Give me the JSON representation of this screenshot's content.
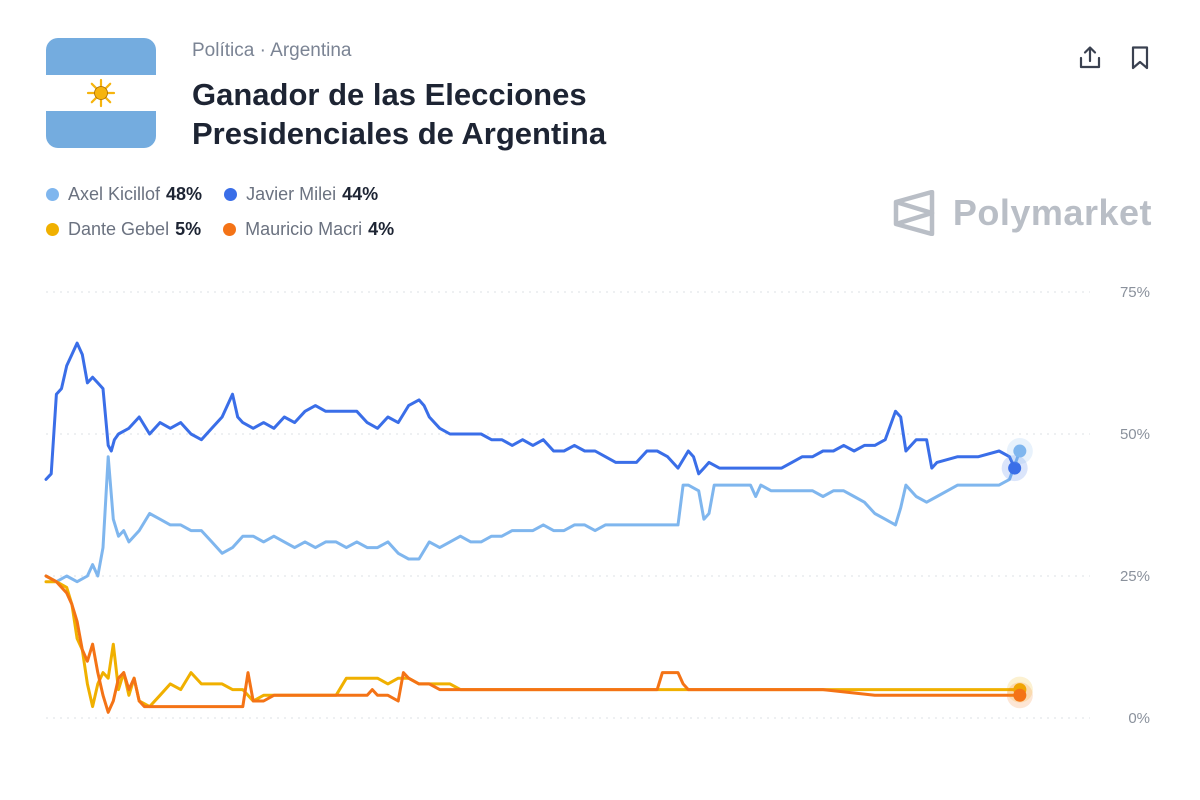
{
  "header": {
    "breadcrumb": "Política · Argentina",
    "title": "Ganador de las Elecciones Presidenciales de Argentina",
    "brand": "Polymarket"
  },
  "icons": {
    "share": "share-icon",
    "bookmark": "bookmark-icon",
    "flag": "argentina-flag-icon",
    "brand_logo": "polymarket-logo-icon"
  },
  "colors": {
    "light_blue": "#7fb6ee",
    "blue": "#3a6ee8",
    "yellow": "#f0b000",
    "orange": "#f47316",
    "flag_blue": "#74acdf",
    "sun": "#f6b40e"
  },
  "legend": [
    {
      "name": "Axel Kicillof",
      "value": "48%",
      "color": "#7fb6ee"
    },
    {
      "name": "Javier Milei",
      "value": "44%",
      "color": "#3a6ee8"
    },
    {
      "name": "Dante Gebel",
      "value": "5%",
      "color": "#f0b000"
    },
    {
      "name": "Mauricio Macri",
      "value": "4%",
      "color": "#f47316"
    }
  ],
  "chart_data": {
    "type": "line",
    "y_ticks": [
      "75%",
      "50%",
      "25%",
      "0%"
    ],
    "ylim": [
      0,
      75
    ],
    "xlim": [
      0,
      100
    ],
    "grid": true,
    "series": [
      {
        "name": "Javier Milei",
        "color": "#3a6ee8",
        "points": [
          [
            0,
            42
          ],
          [
            0.5,
            43
          ],
          [
            1,
            57
          ],
          [
            1.5,
            58
          ],
          [
            2,
            62
          ],
          [
            2.5,
            64
          ],
          [
            3,
            66
          ],
          [
            3.5,
            64
          ],
          [
            4,
            59
          ],
          [
            4.5,
            60
          ],
          [
            5,
            59
          ],
          [
            5.5,
            58
          ],
          [
            6,
            48
          ],
          [
            6.3,
            47
          ],
          [
            6.6,
            49
          ],
          [
            7,
            50
          ],
          [
            8,
            51
          ],
          [
            9,
            53
          ],
          [
            10,
            50
          ],
          [
            11,
            52
          ],
          [
            12,
            51
          ],
          [
            13,
            52
          ],
          [
            14,
            50
          ],
          [
            15,
            49
          ],
          [
            16,
            51
          ],
          [
            17,
            53
          ],
          [
            18,
            57
          ],
          [
            18.5,
            53
          ],
          [
            19,
            52
          ],
          [
            20,
            51
          ],
          [
            21,
            52
          ],
          [
            22,
            51
          ],
          [
            23,
            53
          ],
          [
            24,
            52
          ],
          [
            25,
            54
          ],
          [
            26,
            55
          ],
          [
            27,
            54
          ],
          [
            30,
            54
          ],
          [
            31,
            52
          ],
          [
            32,
            51
          ],
          [
            33,
            53
          ],
          [
            34,
            52
          ],
          [
            35,
            55
          ],
          [
            36,
            56
          ],
          [
            36.5,
            55
          ],
          [
            37,
            53
          ],
          [
            38,
            51
          ],
          [
            39,
            50
          ],
          [
            40,
            50
          ],
          [
            42,
            50
          ],
          [
            43,
            49
          ],
          [
            44,
            49
          ],
          [
            45,
            48
          ],
          [
            46,
            49
          ],
          [
            47,
            48
          ],
          [
            48,
            49
          ],
          [
            49,
            47
          ],
          [
            50,
            47
          ],
          [
            51,
            48
          ],
          [
            52,
            47
          ],
          [
            53,
            47
          ],
          [
            54,
            46
          ],
          [
            55,
            45
          ],
          [
            56,
            45
          ],
          [
            57,
            45
          ],
          [
            58,
            47
          ],
          [
            59,
            47
          ],
          [
            60,
            46
          ],
          [
            61,
            44
          ],
          [
            62,
            47
          ],
          [
            62.5,
            46
          ],
          [
            63,
            43
          ],
          [
            63.5,
            44
          ],
          [
            64,
            45
          ],
          [
            65,
            44
          ],
          [
            66,
            44
          ],
          [
            67,
            44
          ],
          [
            68,
            44
          ],
          [
            69,
            44
          ],
          [
            70,
            44
          ],
          [
            71,
            44
          ],
          [
            72,
            45
          ],
          [
            73,
            46
          ],
          [
            74,
            46
          ],
          [
            75,
            47
          ],
          [
            76,
            47
          ],
          [
            77,
            48
          ],
          [
            78,
            47
          ],
          [
            79,
            48
          ],
          [
            80,
            48
          ],
          [
            81,
            49
          ],
          [
            82,
            54
          ],
          [
            82.5,
            53
          ],
          [
            83,
            47
          ],
          [
            84,
            49
          ],
          [
            85,
            49
          ],
          [
            85.5,
            44
          ],
          [
            86,
            45
          ],
          [
            88,
            46
          ],
          [
            90,
            46
          ],
          [
            92,
            47
          ],
          [
            93,
            46
          ],
          [
            93.5,
            44
          ]
        ]
      },
      {
        "name": "Axel Kicillof",
        "color": "#7fb6ee",
        "points": [
          [
            0,
            25
          ],
          [
            1,
            24
          ],
          [
            2,
            25
          ],
          [
            3,
            24
          ],
          [
            4,
            25
          ],
          [
            4.5,
            27
          ],
          [
            5,
            25
          ],
          [
            5.5,
            30
          ],
          [
            6,
            46
          ],
          [
            6.5,
            35
          ],
          [
            7,
            32
          ],
          [
            7.5,
            33
          ],
          [
            8,
            31
          ],
          [
            9,
            33
          ],
          [
            10,
            36
          ],
          [
            11,
            35
          ],
          [
            12,
            34
          ],
          [
            13,
            34
          ],
          [
            14,
            33
          ],
          [
            15,
            33
          ],
          [
            16,
            31
          ],
          [
            17,
            29
          ],
          [
            18,
            30
          ],
          [
            19,
            32
          ],
          [
            20,
            32
          ],
          [
            21,
            31
          ],
          [
            22,
            32
          ],
          [
            23,
            31
          ],
          [
            24,
            30
          ],
          [
            25,
            31
          ],
          [
            26,
            30
          ],
          [
            27,
            31
          ],
          [
            28,
            31
          ],
          [
            29,
            30
          ],
          [
            30,
            31
          ],
          [
            31,
            30
          ],
          [
            32,
            30
          ],
          [
            33,
            31
          ],
          [
            34,
            29
          ],
          [
            35,
            28
          ],
          [
            36,
            28
          ],
          [
            37,
            31
          ],
          [
            38,
            30
          ],
          [
            39,
            31
          ],
          [
            40,
            32
          ],
          [
            41,
            31
          ],
          [
            42,
            31
          ],
          [
            43,
            32
          ],
          [
            44,
            32
          ],
          [
            45,
            33
          ],
          [
            46,
            33
          ],
          [
            47,
            33
          ],
          [
            48,
            34
          ],
          [
            49,
            33
          ],
          [
            50,
            33
          ],
          [
            51,
            34
          ],
          [
            52,
            34
          ],
          [
            53,
            33
          ],
          [
            54,
            34
          ],
          [
            55,
            34
          ],
          [
            56,
            34
          ],
          [
            57,
            34
          ],
          [
            58,
            34
          ],
          [
            59,
            34
          ],
          [
            60,
            34
          ],
          [
            61,
            34
          ],
          [
            61.5,
            41
          ],
          [
            62,
            41
          ],
          [
            63,
            40
          ],
          [
            63.5,
            35
          ],
          [
            64,
            36
          ],
          [
            64.5,
            41
          ],
          [
            65,
            41
          ],
          [
            66,
            41
          ],
          [
            67,
            41
          ],
          [
            68,
            41
          ],
          [
            68.5,
            39
          ],
          [
            69,
            41
          ],
          [
            70,
            40
          ],
          [
            71,
            40
          ],
          [
            72,
            40
          ],
          [
            73,
            40
          ],
          [
            74,
            40
          ],
          [
            75,
            39
          ],
          [
            76,
            40
          ],
          [
            77,
            40
          ],
          [
            78,
            39
          ],
          [
            79,
            38
          ],
          [
            80,
            36
          ],
          [
            81,
            35
          ],
          [
            82,
            34
          ],
          [
            82.5,
            37
          ],
          [
            83,
            41
          ],
          [
            84,
            39
          ],
          [
            85,
            38
          ],
          [
            86,
            39
          ],
          [
            87,
            40
          ],
          [
            88,
            41
          ],
          [
            89,
            41
          ],
          [
            90,
            41
          ],
          [
            91,
            41
          ],
          [
            92,
            41
          ],
          [
            93,
            42
          ],
          [
            94,
            47
          ]
        ]
      },
      {
        "name": "Dante Gebel",
        "color": "#f0b000",
        "points": [
          [
            0,
            24
          ],
          [
            1,
            24
          ],
          [
            2,
            23
          ],
          [
            2.5,
            20
          ],
          [
            3,
            14
          ],
          [
            3.5,
            12
          ],
          [
            4,
            6
          ],
          [
            4.5,
            2
          ],
          [
            5,
            6
          ],
          [
            5.5,
            8
          ],
          [
            6,
            7
          ],
          [
            6.5,
            13
          ],
          [
            7,
            5
          ],
          [
            7.5,
            8
          ],
          [
            8,
            4
          ],
          [
            8.5,
            7
          ],
          [
            9,
            3
          ],
          [
            10,
            2
          ],
          [
            11,
            4
          ],
          [
            12,
            6
          ],
          [
            13,
            5
          ],
          [
            14,
            8
          ],
          [
            15,
            6
          ],
          [
            16,
            6
          ],
          [
            17,
            6
          ],
          [
            18,
            5
          ],
          [
            19,
            5
          ],
          [
            20,
            3
          ],
          [
            21,
            4
          ],
          [
            22,
            4
          ],
          [
            23,
            4
          ],
          [
            24,
            4
          ],
          [
            25,
            4
          ],
          [
            26,
            4
          ],
          [
            27,
            4
          ],
          [
            28,
            4
          ],
          [
            29,
            7
          ],
          [
            30,
            7
          ],
          [
            31,
            7
          ],
          [
            32,
            7
          ],
          [
            33,
            6
          ],
          [
            34,
            7
          ],
          [
            35,
            7
          ],
          [
            36,
            6
          ],
          [
            37,
            6
          ],
          [
            38,
            6
          ],
          [
            39,
            6
          ],
          [
            40,
            5
          ],
          [
            45,
            5
          ],
          [
            50,
            5
          ],
          [
            55,
            5
          ],
          [
            60,
            5
          ],
          [
            65,
            5
          ],
          [
            70,
            5
          ],
          [
            75,
            5
          ],
          [
            80,
            5
          ],
          [
            85,
            5
          ],
          [
            90,
            5
          ],
          [
            94,
            5
          ]
        ]
      },
      {
        "name": "Mauricio Macri",
        "color": "#f47316",
        "points": [
          [
            0,
            25
          ],
          [
            1,
            24
          ],
          [
            2,
            22
          ],
          [
            2.5,
            20
          ],
          [
            3,
            17
          ],
          [
            3.5,
            12
          ],
          [
            4,
            10
          ],
          [
            4.5,
            13
          ],
          [
            5,
            8
          ],
          [
            5.5,
            4
          ],
          [
            6,
            1
          ],
          [
            6.5,
            3
          ],
          [
            7,
            7
          ],
          [
            7.5,
            8
          ],
          [
            8,
            5
          ],
          [
            8.5,
            7
          ],
          [
            9,
            3
          ],
          [
            9.5,
            2
          ],
          [
            10,
            2
          ],
          [
            12,
            2
          ],
          [
            14,
            2
          ],
          [
            16,
            2
          ],
          [
            18,
            2
          ],
          [
            19,
            2
          ],
          [
            19.5,
            8
          ],
          [
            20,
            3
          ],
          [
            21,
            3
          ],
          [
            22,
            4
          ],
          [
            24,
            4
          ],
          [
            26,
            4
          ],
          [
            28,
            4
          ],
          [
            29,
            4
          ],
          [
            30,
            4
          ],
          [
            31,
            4
          ],
          [
            31.5,
            5
          ],
          [
            32,
            4
          ],
          [
            33,
            4
          ],
          [
            34,
            3
          ],
          [
            34.5,
            8
          ],
          [
            35,
            7
          ],
          [
            36,
            6
          ],
          [
            37,
            6
          ],
          [
            38,
            5
          ],
          [
            39,
            5
          ],
          [
            40,
            5
          ],
          [
            45,
            5
          ],
          [
            50,
            5
          ],
          [
            55,
            5
          ],
          [
            59,
            5
          ],
          [
            59.5,
            8
          ],
          [
            60,
            8
          ],
          [
            61,
            8
          ],
          [
            61.5,
            6
          ],
          [
            62,
            5
          ],
          [
            65,
            5
          ],
          [
            70,
            5
          ],
          [
            75,
            5
          ],
          [
            80,
            4
          ],
          [
            85,
            4
          ],
          [
            90,
            4
          ],
          [
            94,
            4
          ]
        ]
      }
    ]
  }
}
